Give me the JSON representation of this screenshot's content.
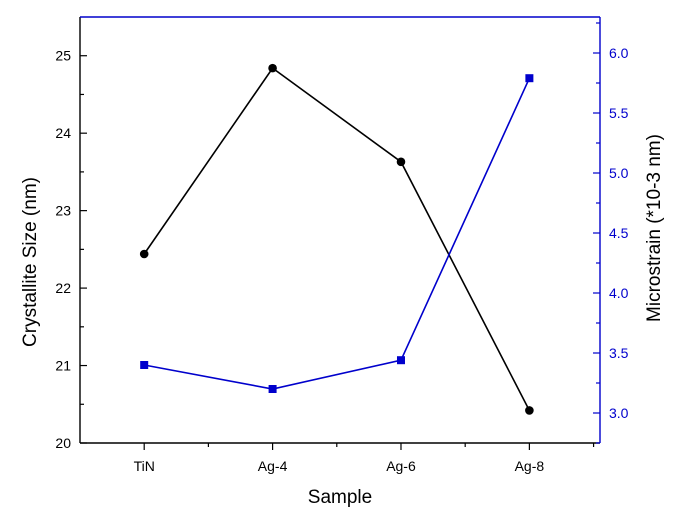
{
  "chart_data": {
    "type": "line",
    "xlabel": "Sample",
    "ylabel_left": "Crystallite Size (nm)",
    "ylabel_right": "Microstrain (*10-3 nm)",
    "categories": [
      "TiN",
      "Ag-4",
      "Ag-6",
      "Ag-8"
    ],
    "y_left": {
      "range": [
        20,
        25.5
      ],
      "ticks": [
        "20",
        "21",
        "22",
        "23",
        "24",
        "25"
      ],
      "tick_values": [
        20,
        21,
        22,
        23,
        24,
        25
      ]
    },
    "y_right": {
      "range": [
        2.75,
        6.3
      ],
      "ticks": [
        "3.0",
        "3.5",
        "4.0",
        "4.5",
        "5.0",
        "5.5",
        "6.0"
      ],
      "tick_values": [
        3.0,
        3.5,
        4.0,
        4.5,
        5.0,
        5.5,
        6.0
      ]
    },
    "series": [
      {
        "axis": "left",
        "color": "#000000",
        "marker": "circle",
        "values": [
          22.44,
          24.84,
          23.63,
          20.42
        ]
      },
      {
        "axis": "right",
        "color": "#0000cc",
        "marker": "square",
        "values": [
          3.4,
          3.2,
          3.44,
          5.79
        ]
      }
    ],
    "grid": false,
    "legend": "none"
  }
}
